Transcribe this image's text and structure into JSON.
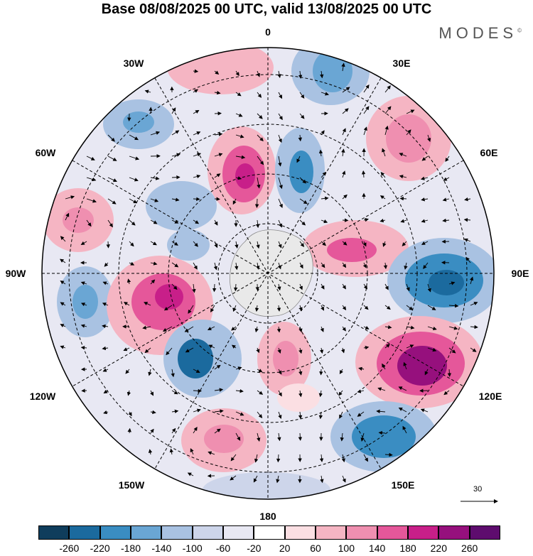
{
  "title": "Base 08/08/2025 00 UTC, valid 13/08/2025 00 UTC",
  "brand": "MODES",
  "brand_mark": "©",
  "longitudes": {
    "top": "0",
    "bottom": "180",
    "left": "90W",
    "right": "90E",
    "nw30": "30W",
    "nw60": "60W",
    "ne30": "30E",
    "ne60": "60E",
    "sw120": "120W",
    "sw150": "150W",
    "se120": "120E",
    "se150": "150E"
  },
  "vector_scale_label": "30",
  "colorbar": {
    "colors": [
      "#0f3d5c",
      "#1b6a9e",
      "#3a8dc2",
      "#6aa6d4",
      "#a9c2e2",
      "#cdd5ea",
      "#e8e8f3",
      "#ffffff",
      "#fbdfe3",
      "#f5b5c3",
      "#ef8fb0",
      "#e5579a",
      "#c81f89",
      "#96107d",
      "#5e0c6e"
    ],
    "ticks": [
      "-260",
      "-220",
      "-180",
      "-140",
      "-100",
      "-60",
      "-20",
      "20",
      "60",
      "100",
      "140",
      "180",
      "220",
      "260"
    ]
  }
}
